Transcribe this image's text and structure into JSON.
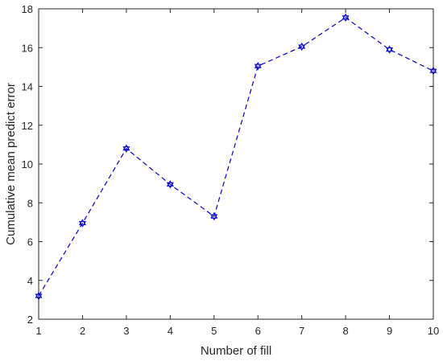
{
  "chart_data": {
    "type": "line",
    "title": "",
    "xlabel": "Number of fill",
    "ylabel": "Cumulative mean predict error",
    "xlim": [
      1,
      10
    ],
    "ylim": [
      2,
      18
    ],
    "xticks": [
      1,
      2,
      3,
      4,
      5,
      6,
      7,
      8,
      9,
      10
    ],
    "yticks": [
      2,
      4,
      6,
      8,
      10,
      12,
      14,
      16,
      18
    ],
    "grid": false,
    "legend": "none",
    "series": [
      {
        "x": [
          1,
          2,
          3,
          4,
          5,
          6,
          7,
          8,
          9,
          10
        ],
        "y": [
          3.2,
          6.95,
          10.8,
          8.95,
          7.3,
          15.05,
          16.05,
          17.55,
          15.9,
          14.8
        ],
        "color": "#0000cc",
        "line_style": "dashed",
        "marker": "hexagram"
      }
    ]
  }
}
